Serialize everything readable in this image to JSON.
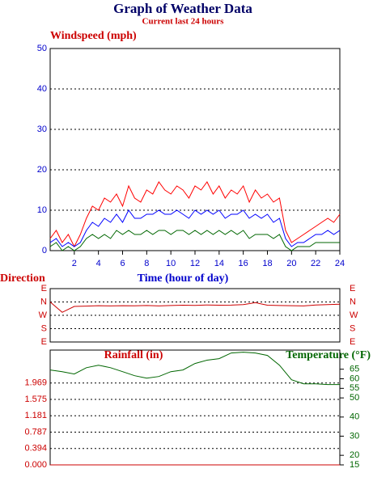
{
  "chart_data": [
    {
      "type": "line",
      "title": "Graph of Weather Data",
      "subtitle": "Current last 24 hours",
      "ylabel": "Windspeed (mph)",
      "xlabel": "Time (hour of day)",
      "x": [
        0,
        0.5,
        1,
        1.5,
        2,
        2.5,
        3,
        3.5,
        4,
        4.5,
        5,
        5.5,
        6,
        6.5,
        7,
        7.5,
        8,
        8.5,
        9,
        9.5,
        10,
        10.5,
        11,
        11.5,
        12,
        12.5,
        13,
        13.5,
        14,
        14.5,
        15,
        15.5,
        16,
        16.5,
        17,
        17.5,
        18,
        18.5,
        19,
        19.5,
        20,
        20.5,
        21,
        21.5,
        22,
        22.5,
        23,
        23.5,
        24
      ],
      "series": [
        {
          "color": "#ff0000",
          "values": [
            3,
            5,
            2,
            4,
            1,
            4,
            8,
            11,
            10,
            13,
            12,
            14,
            11,
            16,
            13,
            12,
            15,
            14,
            17,
            15,
            14,
            16,
            15,
            13,
            16,
            15,
            17,
            14,
            16,
            13,
            15,
            14,
            16,
            12,
            15,
            13,
            14,
            12,
            13,
            5,
            2,
            3,
            4,
            5,
            6,
            7,
            8,
            7,
            9
          ]
        },
        {
          "color": "#0000ff",
          "values": [
            2,
            3,
            1,
            2,
            1,
            2,
            5,
            7,
            6,
            8,
            7,
            9,
            7,
            10,
            8,
            8,
            9,
            9,
            10,
            9,
            9,
            10,
            9,
            8,
            10,
            9,
            10,
            9,
            10,
            8,
            9,
            9,
            10,
            8,
            9,
            8,
            9,
            7,
            8,
            3,
            1,
            2,
            2,
            3,
            4,
            4,
            5,
            4,
            5
          ]
        },
        {
          "color": "#006600",
          "values": [
            1,
            2,
            0,
            1,
            0,
            1,
            3,
            4,
            3,
            4,
            3,
            5,
            4,
            5,
            4,
            4,
            5,
            4,
            5,
            5,
            4,
            5,
            5,
            4,
            5,
            4,
            5,
            4,
            5,
            4,
            5,
            4,
            5,
            3,
            4,
            4,
            4,
            3,
            4,
            1,
            0,
            1,
            1,
            1,
            2,
            2,
            2,
            2,
            2
          ]
        }
      ],
      "xlim": [
        0,
        24
      ],
      "xticks": [
        2,
        4,
        6,
        8,
        10,
        12,
        14,
        16,
        18,
        20,
        22,
        24
      ],
      "ylim": [
        0,
        50
      ],
      "yticks": [
        0,
        10,
        20,
        30,
        40,
        50
      ],
      "grid": true
    },
    {
      "type": "line",
      "ylabel": "Direction",
      "x": [
        0,
        1,
        2,
        3,
        4,
        5,
        6,
        7,
        8,
        9,
        10,
        11,
        12,
        13,
        14,
        15,
        16,
        17,
        18,
        19,
        20,
        21,
        22,
        23,
        24
      ],
      "series": [
        {
          "color": "#cc0000",
          "values": [
            360,
            290,
            330,
            332,
            335,
            333,
            335,
            334,
            336,
            333,
            336,
            338,
            337,
            340,
            338,
            339,
            342,
            355,
            338,
            336,
            335,
            333,
            340,
            342,
            345
          ]
        }
      ],
      "xlim": [
        0,
        24
      ],
      "ylim": [
        90,
        450
      ],
      "yticks": [
        {
          "value": 90,
          "label": "E"
        },
        {
          "value": 180,
          "label": "S"
        },
        {
          "value": 270,
          "label": "W"
        },
        {
          "value": 360,
          "label": "N"
        },
        {
          "value": 450,
          "label": "E"
        }
      ],
      "grid": true
    },
    {
      "type": "line",
      "ylabel": "Rainfall (in)",
      "y2label": "Temperature (°F)",
      "x": [
        0,
        1,
        2,
        3,
        4,
        5,
        6,
        7,
        8,
        9,
        10,
        11,
        12,
        13,
        14,
        15,
        16,
        17,
        18,
        19,
        20,
        21,
        22,
        23,
        24
      ],
      "series": [
        {
          "color": "#cc0000",
          "values": [
            0,
            0,
            0,
            0,
            0,
            0,
            0,
            0,
            0,
            0,
            0,
            0,
            0,
            0,
            0,
            0,
            0,
            0,
            0,
            0,
            0,
            0,
            0,
            0,
            0
          ]
        },
        {
          "color": "#006600",
          "axis": "y2",
          "values": [
            64.6,
            63.7,
            62.5,
            65.8,
            67.1,
            65.8,
            63.7,
            61.6,
            60.3,
            61.2,
            63.7,
            64.6,
            68,
            69.7,
            70.5,
            73.5,
            73.9,
            73.5,
            72.2,
            67.1,
            59.5,
            57.4,
            57.4,
            57,
            57
          ]
        }
      ],
      "xlim": [
        0,
        24
      ],
      "ylim": [
        0,
        2.76
      ],
      "yticks": [
        {
          "value": 0,
          "label": "0.000"
        },
        0.394,
        0.787,
        1.181,
        1.575,
        1.969
      ],
      "y2lim": [
        15,
        75
      ],
      "y2ticks": [
        15,
        20,
        30,
        40,
        50,
        55,
        60,
        65
      ],
      "grid": true
    }
  ]
}
